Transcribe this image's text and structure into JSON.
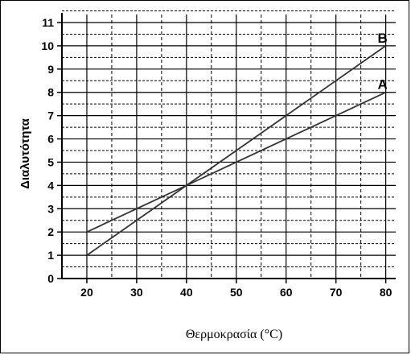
{
  "chart_data": {
    "type": "line",
    "title": "",
    "xlabel": "Θερμοκρασία (°C)",
    "ylabel": "Διαλυτότητα",
    "xlim": [
      15,
      82
    ],
    "ylim": [
      0,
      11
    ],
    "x_ticks": [
      20,
      30,
      40,
      50,
      60,
      70,
      80
    ],
    "y_ticks": [
      0,
      1,
      2,
      3,
      4,
      5,
      6,
      7,
      8,
      9,
      10,
      11
    ],
    "grid": true,
    "legend": "none",
    "series": [
      {
        "name": "A",
        "x": [
          20,
          80
        ],
        "y": [
          2,
          8
        ],
        "color": "#333333"
      },
      {
        "name": "B",
        "x": [
          20,
          80
        ],
        "y": [
          1,
          10
        ],
        "color": "#333333"
      }
    ]
  }
}
